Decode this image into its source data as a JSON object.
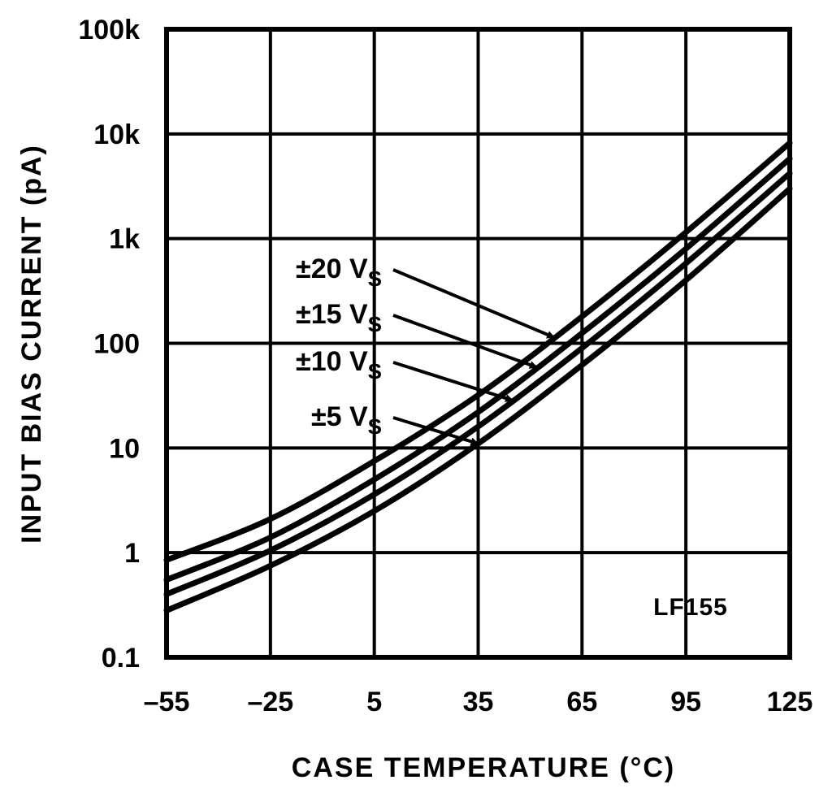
{
  "chart_data": {
    "type": "line",
    "title": "",
    "xlabel": "CASE TEMPERATURE (°C)",
    "ylabel": "INPUT BIAS CURRENT (pA)",
    "xlim": [
      -55,
      125
    ],
    "ylim": [
      0.1,
      100000
    ],
    "yscale": "log",
    "grid": true,
    "x_ticks": [
      -55,
      -25,
      5,
      35,
      65,
      95,
      125
    ],
    "x_tick_labels": [
      "–55",
      "–25",
      "5",
      "35",
      "65",
      "95",
      "125"
    ],
    "y_ticks": [
      0.1,
      1,
      10,
      100,
      1000,
      10000,
      100000
    ],
    "y_tick_labels": [
      "0.1",
      "1",
      "10",
      "100",
      "1k",
      "10k",
      "100k"
    ],
    "x": [
      -55,
      -25,
      5,
      35,
      65,
      95,
      125
    ],
    "series": [
      {
        "name": "±20 VS",
        "label_main": "±20 V",
        "label_sub": "S",
        "arrow_x": 57,
        "values": [
          0.85,
          2.1,
          7.5,
          32,
          180,
          1150,
          8200
        ]
      },
      {
        "name": "±15 VS",
        "label_main": "±15 V",
        "label_sub": "S",
        "arrow_x": 52,
        "values": [
          0.55,
          1.4,
          5.0,
          22,
          125,
          800,
          5800
        ]
      },
      {
        "name": "±10 VS",
        "label_main": "±10 V",
        "label_sub": "S",
        "arrow_x": 45,
        "values": [
          0.4,
          1.05,
          3.6,
          16,
          90,
          580,
          4200
        ]
      },
      {
        "name": "±5 VS",
        "label_main": "±5 V",
        "label_sub": "S",
        "arrow_x": 35,
        "values": [
          0.28,
          0.75,
          2.5,
          11,
          62,
          400,
          3000
        ]
      }
    ],
    "annotations": [
      {
        "text": "LF155"
      }
    ]
  }
}
